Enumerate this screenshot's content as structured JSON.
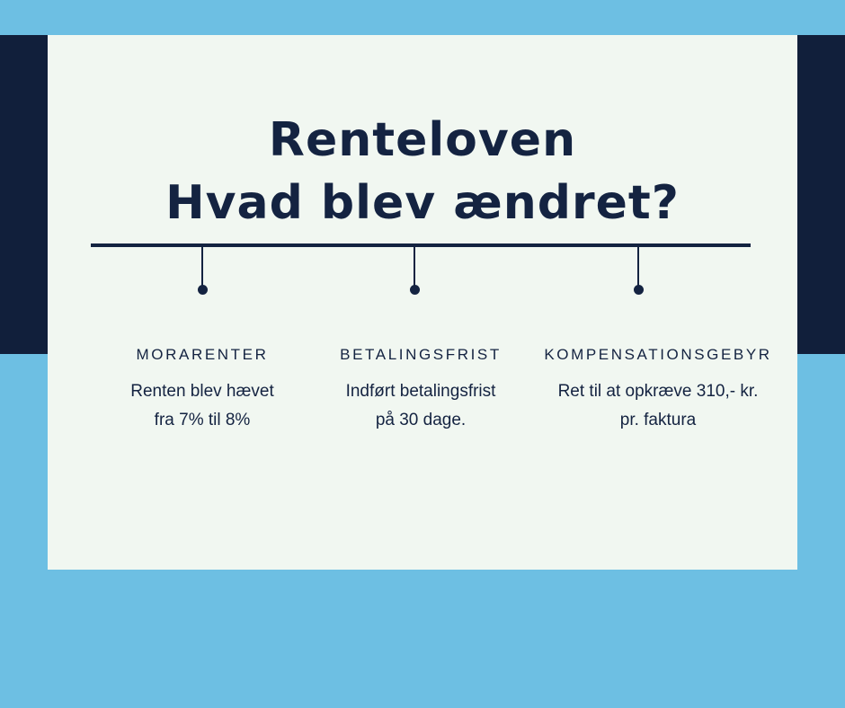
{
  "title": {
    "line1": "Renteloven",
    "line2": "Hvad blev ændret?"
  },
  "items": [
    {
      "heading": "MORARENTER",
      "line1": "Renten blev hævet",
      "line2": "fra 7% til 8%"
    },
    {
      "heading": "BETALINGSFRIST",
      "line1": "Indført betalingsfrist",
      "line2": "på 30 dage."
    },
    {
      "heading": "KOMPENSATIONSGEBYR",
      "line1": "Ret til at opkræve 310,- kr.",
      "line2": "pr. faktura"
    }
  ],
  "colors": {
    "background": "#6dbfe3",
    "band": "#111f3b",
    "card": "#f1f7f1",
    "text": "#142341"
  }
}
